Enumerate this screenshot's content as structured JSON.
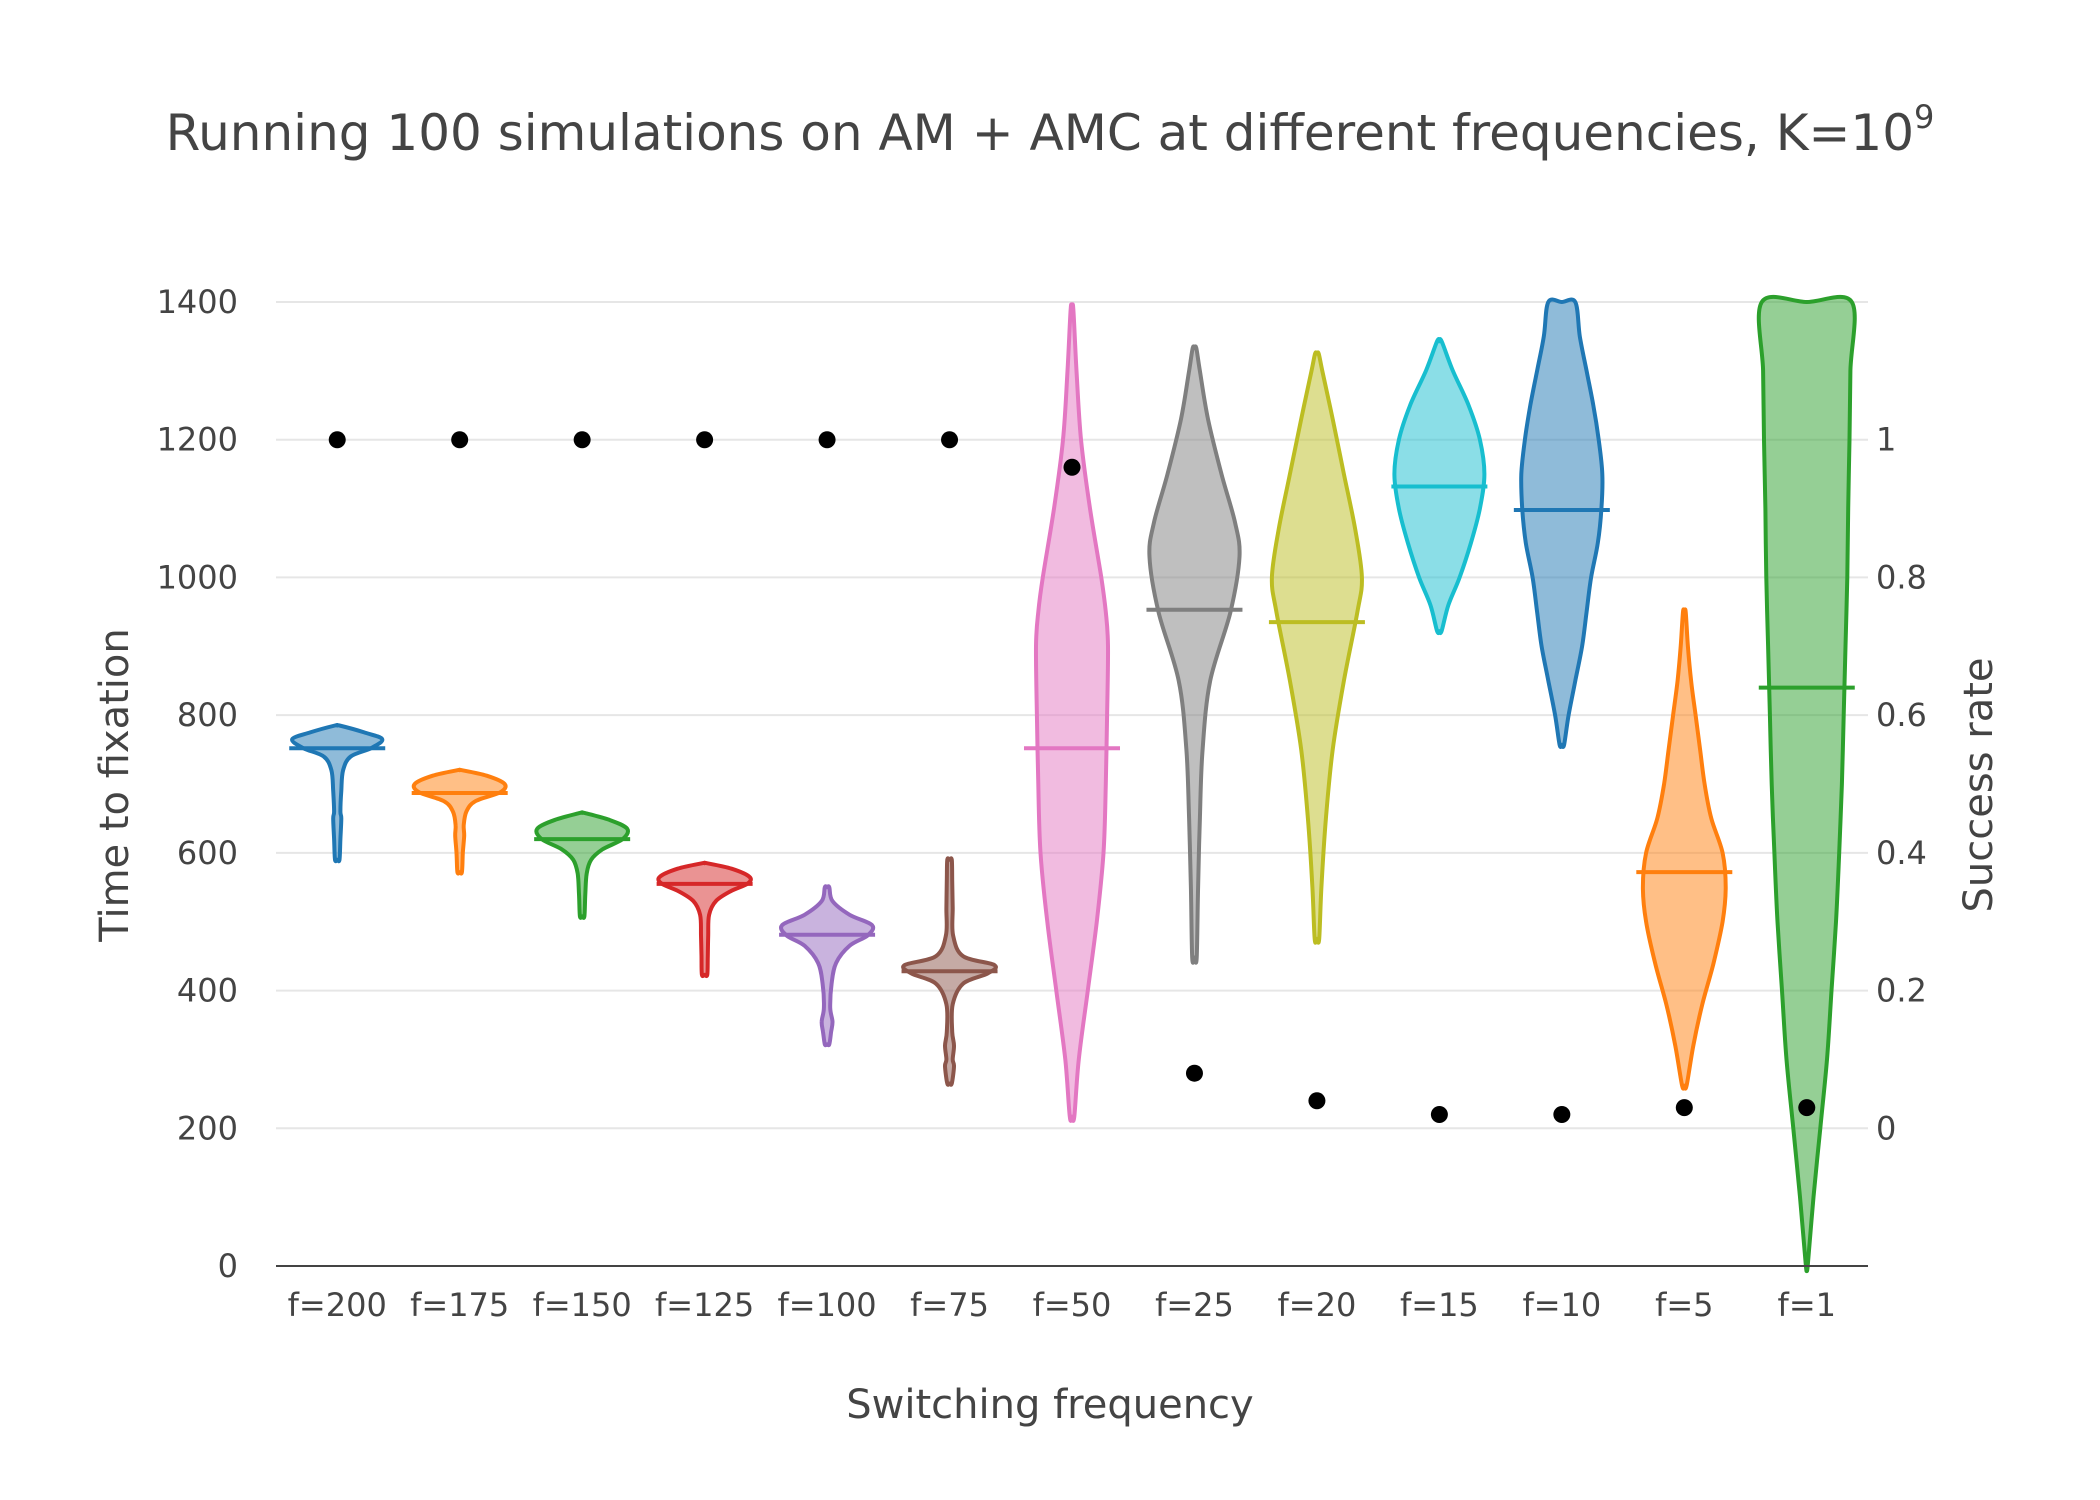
{
  "chart_data": {
    "type": "violin",
    "title_main": "Running 100 simulations on AM + AMC at different frequencies, K=10",
    "title_exponent": "9",
    "xlabel": "Switching frequency",
    "ylabel": "Time to fixation",
    "y2label": "Success rate",
    "ylim": [
      0,
      1400
    ],
    "y2lim": [
      -0.2,
      1.2
    ],
    "y_ticks": [
      "0",
      "200",
      "400",
      "600",
      "800",
      "1000",
      "1200",
      "1400"
    ],
    "y2_ticks": [
      "0",
      "0.2",
      "0.4",
      "0.6",
      "0.8",
      "1"
    ],
    "gridlines": true,
    "categories": [
      "f=200",
      "f=175",
      "f=150",
      "f=125",
      "f=100",
      "f=75",
      "f=50",
      "f=25",
      "f=20",
      "f=15",
      "f=10",
      "f=5",
      "f=1"
    ],
    "colors": [
      "#1f77b4",
      "#ff7f0e",
      "#2ca02c",
      "#d62728",
      "#9467bd",
      "#8c564b",
      "#e377c2",
      "#7f7f7f",
      "#bcbd22",
      "#17becf",
      "#1f77b4",
      "#ff7f0e",
      "#2ca02c"
    ],
    "violins": [
      {
        "min": 590,
        "max": 785,
        "median": 752,
        "profile": [
          [
            590,
            0.05
          ],
          [
            620,
            0.07
          ],
          [
            650,
            0.09
          ],
          [
            660,
            0.07
          ],
          [
            690,
            0.09
          ],
          [
            720,
            0.13
          ],
          [
            740,
            0.3
          ],
          [
            752,
            0.75
          ],
          [
            765,
            1.0
          ],
          [
            775,
            0.6
          ],
          [
            785,
            0.05
          ]
        ]
      },
      {
        "min": 572,
        "max": 720,
        "median": 687,
        "profile": [
          [
            572,
            0.05
          ],
          [
            600,
            0.07
          ],
          [
            625,
            0.1
          ],
          [
            640,
            0.09
          ],
          [
            660,
            0.15
          ],
          [
            675,
            0.35
          ],
          [
            688,
            0.9
          ],
          [
            700,
            1.0
          ],
          [
            712,
            0.6
          ],
          [
            720,
            0.05
          ]
        ]
      },
      {
        "min": 508,
        "max": 658,
        "median": 620,
        "profile": [
          [
            508,
            0.05
          ],
          [
            540,
            0.07
          ],
          [
            570,
            0.1
          ],
          [
            590,
            0.2
          ],
          [
            605,
            0.45
          ],
          [
            620,
            0.9
          ],
          [
            635,
            1.0
          ],
          [
            648,
            0.6
          ],
          [
            658,
            0.05
          ]
        ]
      },
      {
        "min": 423,
        "max": 585,
        "median": 555,
        "profile": [
          [
            423,
            0.06
          ],
          [
            450,
            0.07
          ],
          [
            480,
            0.08
          ],
          [
            510,
            0.1
          ],
          [
            530,
            0.25
          ],
          [
            545,
            0.6
          ],
          [
            555,
            0.95
          ],
          [
            565,
            1.0
          ],
          [
            577,
            0.6
          ],
          [
            585,
            0.05
          ]
        ]
      },
      {
        "min": 322,
        "max": 550,
        "median": 481,
        "profile": [
          [
            322,
            0.05
          ],
          [
            340,
            0.09
          ],
          [
            355,
            0.12
          ],
          [
            375,
            0.07
          ],
          [
            410,
            0.1
          ],
          [
            440,
            0.2
          ],
          [
            465,
            0.5
          ],
          [
            480,
            0.9
          ],
          [
            495,
            1.0
          ],
          [
            510,
            0.5
          ],
          [
            530,
            0.12
          ],
          [
            550,
            0.05
          ]
        ]
      },
      {
        "min": 265,
        "max": 590,
        "median": 428,
        "profile": [
          [
            265,
            0.05
          ],
          [
            290,
            0.1
          ],
          [
            300,
            0.07
          ],
          [
            320,
            0.1
          ],
          [
            340,
            0.06
          ],
          [
            380,
            0.07
          ],
          [
            410,
            0.3
          ],
          [
            425,
            0.85
          ],
          [
            437,
            1.0
          ],
          [
            450,
            0.3
          ],
          [
            480,
            0.08
          ],
          [
            520,
            0.07
          ],
          [
            560,
            0.06
          ],
          [
            590,
            0.05
          ]
        ]
      },
      {
        "min": 217,
        "max": 1390,
        "median": 752,
        "profile": [
          [
            217,
            0.05
          ],
          [
            300,
            0.15
          ],
          [
            400,
            0.35
          ],
          [
            500,
            0.55
          ],
          [
            600,
            0.7
          ],
          [
            700,
            0.75
          ],
          [
            800,
            0.78
          ],
          [
            900,
            0.8
          ],
          [
            950,
            0.75
          ],
          [
            1000,
            0.65
          ],
          [
            1100,
            0.4
          ],
          [
            1200,
            0.2
          ],
          [
            1300,
            0.1
          ],
          [
            1390,
            0.03
          ]
        ]
      },
      {
        "min": 448,
        "max": 1333,
        "median": 953,
        "profile": [
          [
            448,
            0.05
          ],
          [
            550,
            0.08
          ],
          [
            650,
            0.12
          ],
          [
            750,
            0.18
          ],
          [
            850,
            0.35
          ],
          [
            950,
            0.8
          ],
          [
            1030,
            1.0
          ],
          [
            1080,
            0.9
          ],
          [
            1150,
            0.6
          ],
          [
            1230,
            0.3
          ],
          [
            1300,
            0.12
          ],
          [
            1333,
            0.04
          ]
        ]
      },
      {
        "min": 475,
        "max": 1325,
        "median": 935,
        "profile": [
          [
            475,
            0.05
          ],
          [
            550,
            0.1
          ],
          [
            650,
            0.2
          ],
          [
            750,
            0.35
          ],
          [
            850,
            0.6
          ],
          [
            950,
            0.9
          ],
          [
            1000,
            1.0
          ],
          [
            1070,
            0.85
          ],
          [
            1150,
            0.6
          ],
          [
            1230,
            0.35
          ],
          [
            1300,
            0.12
          ],
          [
            1325,
            0.04
          ]
        ]
      },
      {
        "min": 922,
        "max": 1343,
        "median": 1132,
        "profile": [
          [
            922,
            0.05
          ],
          [
            960,
            0.2
          ],
          [
            1000,
            0.45
          ],
          [
            1050,
            0.7
          ],
          [
            1100,
            0.9
          ],
          [
            1150,
            1.0
          ],
          [
            1200,
            0.9
          ],
          [
            1250,
            0.65
          ],
          [
            1300,
            0.3
          ],
          [
            1343,
            0.05
          ]
        ]
      },
      {
        "min": 757,
        "max": 1400,
        "median": 1098,
        "profile": [
          [
            757,
            0.05
          ],
          [
            800,
            0.15
          ],
          [
            850,
            0.3
          ],
          [
            900,
            0.45
          ],
          [
            950,
            0.55
          ],
          [
            1000,
            0.65
          ],
          [
            1050,
            0.8
          ],
          [
            1100,
            0.88
          ],
          [
            1150,
            0.9
          ],
          [
            1200,
            0.82
          ],
          [
            1250,
            0.7
          ],
          [
            1300,
            0.55
          ],
          [
            1350,
            0.4
          ],
          [
            1400,
            0.3
          ]
        ]
      },
      {
        "min": 262,
        "max": 950,
        "median": 572,
        "profile": [
          [
            262,
            0.05
          ],
          [
            320,
            0.2
          ],
          [
            380,
            0.4
          ],
          [
            440,
            0.65
          ],
          [
            500,
            0.85
          ],
          [
            550,
            0.92
          ],
          [
            600,
            0.85
          ],
          [
            650,
            0.6
          ],
          [
            700,
            0.45
          ],
          [
            750,
            0.35
          ],
          [
            800,
            0.25
          ],
          [
            850,
            0.15
          ],
          [
            900,
            0.08
          ],
          [
            950,
            0.03
          ]
        ]
      },
      {
        "min": 0,
        "max": 1400,
        "median": 840,
        "profile": [
          [
            0,
            0.02
          ],
          [
            100,
            0.15
          ],
          [
            200,
            0.3
          ],
          [
            300,
            0.45
          ],
          [
            400,
            0.55
          ],
          [
            500,
            0.65
          ],
          [
            600,
            0.72
          ],
          [
            700,
            0.78
          ],
          [
            800,
            0.82
          ],
          [
            900,
            0.86
          ],
          [
            1000,
            0.9
          ],
          [
            1100,
            0.92
          ],
          [
            1200,
            0.95
          ],
          [
            1300,
            0.97
          ],
          [
            1400,
            1.0
          ]
        ]
      }
    ],
    "success_rate": [
      1,
      1,
      1,
      1,
      1,
      1,
      0.96,
      0.08,
      0.04,
      0.02,
      0.02,
      0.03,
      0.03
    ]
  }
}
